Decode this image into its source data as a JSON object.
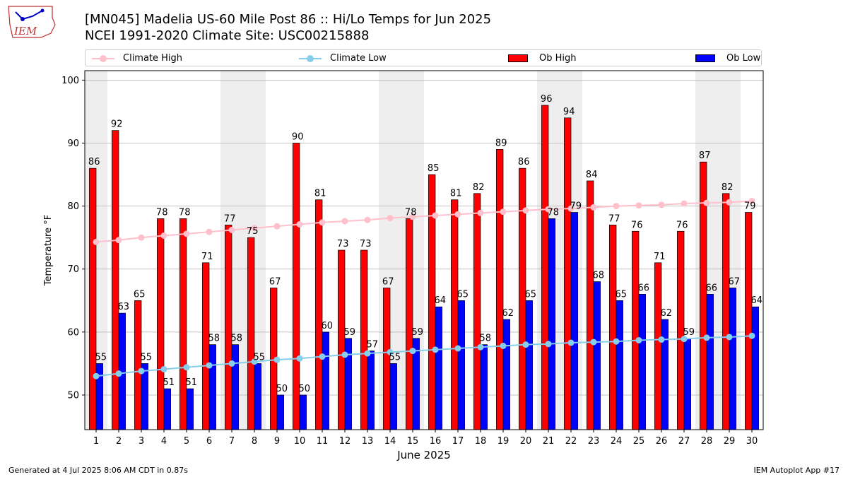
{
  "header": {
    "title": "[MN045] Madelia US-60 Mile Post 86 :: Hi/Lo Temps for Jun 2025",
    "subtitle": "NCEI 1991-2020 Climate Site: USC00215888",
    "logo_text": "IEM"
  },
  "legend": {
    "climate_high": "Climate High",
    "climate_low": "Climate Low",
    "ob_high": "Ob High",
    "ob_low": "Ob Low"
  },
  "footer": {
    "generated": "Generated at 4 Jul 2025 8:06 AM CDT in 0.87s",
    "app": "IEM Autoplot App #17"
  },
  "colors": {
    "ob_high": "#ff0000",
    "ob_low": "#0000ff",
    "climate_high": "#ffc0cb",
    "climate_low": "#87ceeb",
    "weekend_shade": "#eeeeee",
    "grid": "#b0b0b0"
  },
  "chart_data": {
    "type": "bar",
    "xlabel": "June 2025",
    "ylabel": "Temperature °F",
    "ylim": [
      44.5,
      101.5
    ],
    "yticks": [
      50,
      60,
      70,
      80,
      90,
      100
    ],
    "grid": "horizontal",
    "legend_position": "top",
    "categories": [
      "1",
      "2",
      "3",
      "4",
      "5",
      "6",
      "7",
      "8",
      "9",
      "10",
      "11",
      "12",
      "13",
      "14",
      "15",
      "16",
      "17",
      "18",
      "19",
      "20",
      "21",
      "22",
      "23",
      "24",
      "25",
      "26",
      "27",
      "28",
      "29",
      "30"
    ],
    "shaded_days": [
      "1",
      "7",
      "8",
      "14",
      "15",
      "21",
      "22",
      "28",
      "29"
    ],
    "series": [
      {
        "name": "Ob High",
        "kind": "bar",
        "values": [
          86,
          92,
          65,
          78,
          78,
          71,
          77,
          75,
          67,
          90,
          81,
          73,
          73,
          67,
          78,
          85,
          81,
          82,
          89,
          86,
          96,
          94,
          84,
          77,
          76,
          71,
          76,
          87,
          82,
          79
        ]
      },
      {
        "name": "Ob Low",
        "kind": "bar",
        "values": [
          55,
          63,
          55,
          51,
          51,
          58,
          58,
          55,
          50,
          50,
          60,
          59,
          57,
          55,
          59,
          64,
          65,
          58,
          62,
          65,
          78,
          79,
          68,
          65,
          66,
          62,
          59,
          66,
          67,
          64
        ]
      },
      {
        "name": "Climate High",
        "kind": "line",
        "values": [
          74.3,
          74.6,
          75.0,
          75.3,
          75.6,
          75.9,
          76.2,
          76.5,
          76.8,
          77.1,
          77.4,
          77.6,
          77.8,
          78.1,
          78.3,
          78.5,
          78.7,
          78.9,
          79.1,
          79.3,
          79.5,
          79.6,
          79.8,
          80.0,
          80.1,
          80.2,
          80.4,
          80.5,
          80.6,
          80.8
        ]
      },
      {
        "name": "Climate Low",
        "kind": "line",
        "values": [
          53.0,
          53.4,
          53.8,
          54.1,
          54.4,
          54.7,
          55.0,
          55.3,
          55.6,
          55.8,
          56.1,
          56.4,
          56.6,
          56.8,
          57.0,
          57.2,
          57.4,
          57.6,
          57.8,
          58.0,
          58.1,
          58.3,
          58.4,
          58.5,
          58.7,
          58.8,
          58.9,
          59.1,
          59.2,
          59.4
        ]
      }
    ]
  }
}
